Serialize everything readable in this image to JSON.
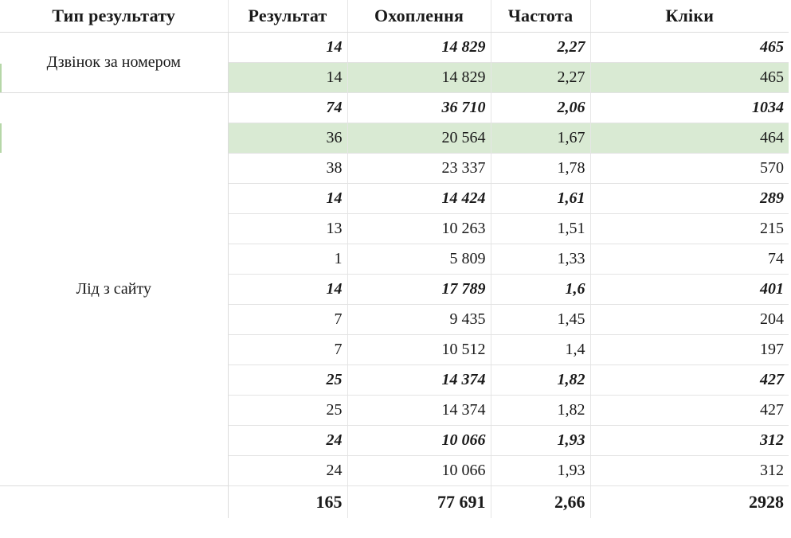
{
  "headers": [
    "Тип результату",
    "Результат",
    "Охоплення",
    "Частота",
    "Кліки"
  ],
  "groups": [
    {
      "type": "Дзвінок за номером",
      "rows": [
        {
          "style": "sub",
          "cells": [
            "14",
            "14 829",
            "2,27",
            "465"
          ]
        },
        {
          "style": "hl",
          "cells": [
            "14",
            "14 829",
            "2,27",
            "465"
          ]
        }
      ]
    },
    {
      "type": "Лід з сайту",
      "rows": [
        {
          "style": "sub",
          "cells": [
            "74",
            "36 710",
            "2,06",
            "1034"
          ]
        },
        {
          "style": "hl",
          "cells": [
            "36",
            "20 564",
            "1,67",
            "464"
          ]
        },
        {
          "style": "normal",
          "cells": [
            "38",
            "23 337",
            "1,78",
            "570"
          ]
        },
        {
          "style": "sub",
          "cells": [
            "14",
            "14 424",
            "1,61",
            "289"
          ]
        },
        {
          "style": "normal",
          "cells": [
            "13",
            "10 263",
            "1,51",
            "215"
          ]
        },
        {
          "style": "normal",
          "cells": [
            "1",
            "5 809",
            "1,33",
            "74"
          ]
        },
        {
          "style": "sub",
          "cells": [
            "14",
            "17 789",
            "1,6",
            "401"
          ]
        },
        {
          "style": "normal",
          "cells": [
            "7",
            "9 435",
            "1,45",
            "204"
          ]
        },
        {
          "style": "normal",
          "cells": [
            "7",
            "10 512",
            "1,4",
            "197"
          ]
        },
        {
          "style": "sub",
          "cells": [
            "25",
            "14 374",
            "1,82",
            "427"
          ]
        },
        {
          "style": "normal",
          "cells": [
            "25",
            "14 374",
            "1,82",
            "427"
          ]
        },
        {
          "style": "sub",
          "cells": [
            "24",
            "10 066",
            "1,93",
            "312"
          ]
        },
        {
          "style": "normal",
          "cells": [
            "24",
            "10 066",
            "1,93",
            "312"
          ]
        }
      ]
    }
  ],
  "total": {
    "label": "",
    "cells": [
      "165",
      "77 691",
      "2,66",
      "2928"
    ]
  },
  "colors": {
    "highlight": "#d9ead3",
    "accent": "#b6d7a8",
    "grid": "#e3e3e3"
  }
}
